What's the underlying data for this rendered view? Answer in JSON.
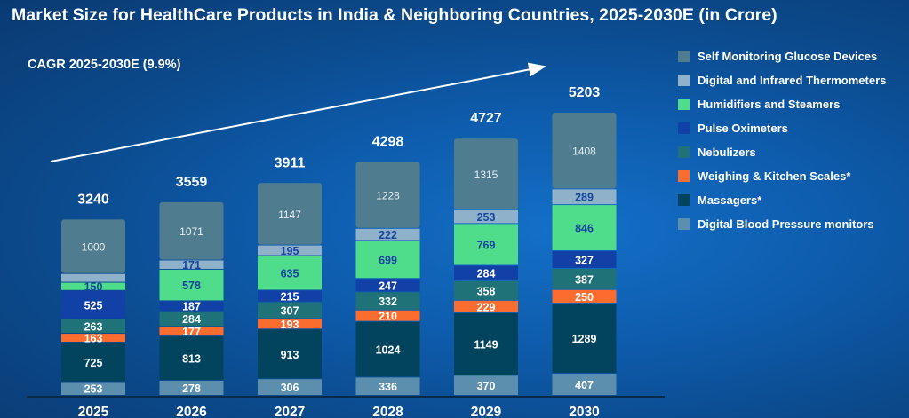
{
  "chart_data": {
    "type": "bar",
    "stacked": true,
    "title": "Market Size for HealthCare Products in India & Neighboring Countries, 2025-2030E (in Crore)",
    "annotation": "CAGR 2025-2030E (9.9%)",
    "xlabel": "",
    "ylabel": "",
    "grid": false,
    "legend_position": "right",
    "categories": [
      "2025",
      "2026",
      "2027",
      "2028",
      "2029",
      "2030"
    ],
    "totals": [
      3240,
      3559,
      3911,
      4298,
      4727,
      5203
    ],
    "series": [
      {
        "name": "Digital Blood Pressure monitors",
        "color": "#5b8fad",
        "label_color": "#ffffff",
        "values": [
          253,
          278,
          306,
          336,
          370,
          407
        ]
      },
      {
        "name": "Massagers*",
        "color": "#02435e",
        "label_color": "#ffffff",
        "values": [
          725,
          813,
          913,
          1024,
          1149,
          1289
        ]
      },
      {
        "name": "Weighing & Kitchen Scales*",
        "color": "#fb6c2f",
        "label_color": "#ffffff",
        "values": [
          163,
          177,
          193,
          210,
          229,
          250
        ]
      },
      {
        "name": "Nebulizers",
        "color": "#1f7278",
        "label_color": "#ffffff",
        "values": [
          263,
          284,
          307,
          332,
          358,
          387
        ]
      },
      {
        "name": "Pulse Oximeters",
        "color": "#1140a7",
        "label_color": "#ffffff",
        "values": [
          525,
          187,
          215,
          247,
          284,
          327
        ]
      },
      {
        "name": "Humidifiers and Steamers",
        "color": "#4fdc8b",
        "label_color": "#1845a0",
        "values": [
          150,
          578,
          635,
          699,
          769,
          846
        ]
      },
      {
        "name": "Digital and Infrared Thermometers",
        "color": "#8fb1c9",
        "label_color": "#1845a0",
        "values": [
          161,
          171,
          195,
          222,
          253,
          289
        ]
      },
      {
        "name": "Self Monitoring Glucose Devices",
        "color": "#4f7d8f",
        "label_color": "#e8eef2",
        "values": [
          1000,
          1071,
          1147,
          1228,
          1315,
          1408
        ]
      }
    ],
    "value_labels": [
      [
        "253",
        "278",
        "306",
        "336",
        "370",
        "407"
      ],
      [
        "725",
        "813",
        "913",
        "1024",
        "1149",
        "1289"
      ],
      [
        "163",
        "177",
        "193",
        "210",
        "229",
        "250"
      ],
      [
        "263",
        "284",
        "307",
        "332",
        "358",
        "387"
      ],
      [
        "525",
        "187",
        "215",
        "247",
        "284",
        "327"
      ],
      [
        "150",
        "578",
        "635",
        "699",
        "769",
        "846"
      ],
      [
        "",
        "171",
        "195",
        "222",
        "253",
        "289"
      ],
      [
        "1000",
        "1071",
        "1147",
        "1228",
        "1315",
        "1408"
      ]
    ],
    "legend_order": [
      "Self Monitoring Glucose Devices",
      "Digital and Infrared Thermometers",
      "Humidifiers and Steamers",
      "Pulse Oximeters",
      "Nebulizers",
      "Weighing & Kitchen Scales*",
      "Massagers*",
      "Digital Blood Pressure monitors"
    ]
  },
  "legend": [
    {
      "label": "Self Monitoring Glucose Devices",
      "color": "#4f7d8f"
    },
    {
      "label": "Digital and Infrared Thermometers",
      "color": "#8fb1c9"
    },
    {
      "label": "Humidifiers and Steamers",
      "color": "#4fdc8b"
    },
    {
      "label": "Pulse Oximeters",
      "color": "#1140a7"
    },
    {
      "label": "Nebulizers",
      "color": "#1f7278"
    },
    {
      "label": "Weighing & Kitchen Scales*",
      "color": "#fb6c2f"
    },
    {
      "label": "Massagers*",
      "color": "#02435e"
    },
    {
      "label": "Digital Blood Pressure monitors",
      "color": "#5b8fad"
    }
  ]
}
